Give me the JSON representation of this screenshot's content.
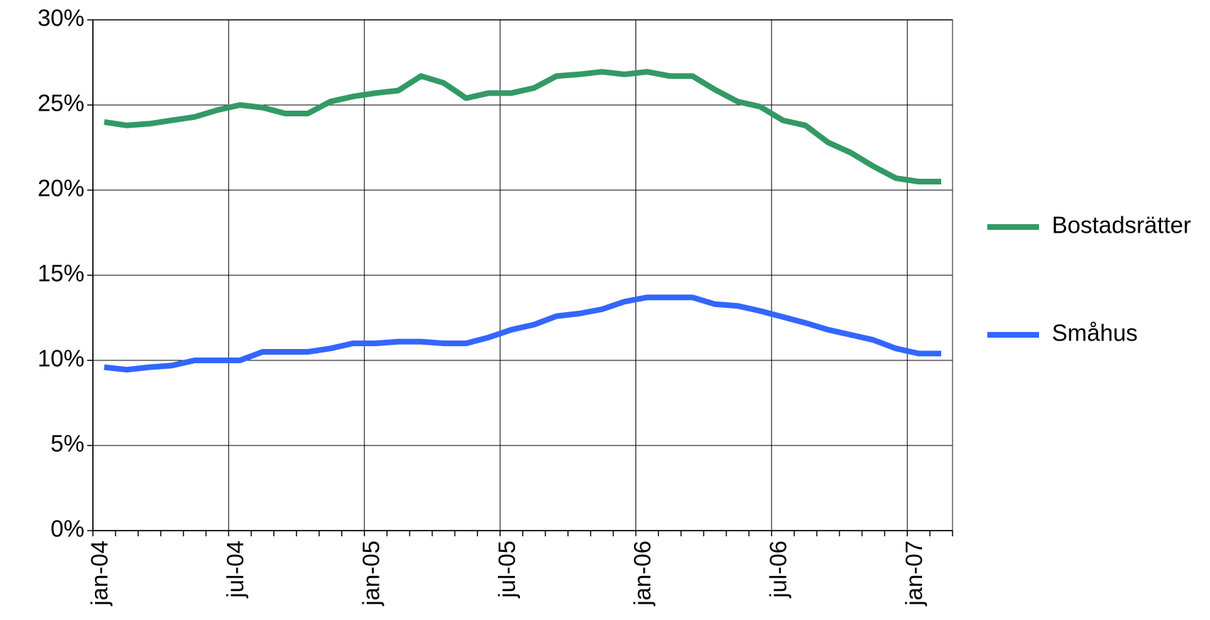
{
  "chart_data": {
    "type": "line",
    "categories": [
      "jan-04",
      null,
      null,
      null,
      null,
      null,
      "jul-04",
      null,
      null,
      null,
      null,
      null,
      "jan-05",
      null,
      null,
      null,
      null,
      null,
      "jul-05",
      null,
      null,
      null,
      null,
      null,
      "jan-06",
      null,
      null,
      null,
      null,
      null,
      "jul-06",
      null,
      null,
      null,
      null,
      null,
      "jan-07",
      null
    ],
    "series": [
      {
        "name": "Bostadsrätter",
        "color": "#339966",
        "values": [
          24.0,
          23.8,
          23.9,
          24.1,
          24.3,
          24.7,
          25.0,
          24.85,
          24.5,
          24.5,
          25.2,
          25.5,
          25.7,
          25.85,
          26.7,
          26.3,
          25.4,
          25.7,
          25.7,
          26.0,
          26.7,
          26.8,
          26.95,
          26.8,
          26.95,
          26.7,
          26.7,
          25.9,
          25.2,
          24.9,
          24.1,
          23.8,
          22.8,
          22.2,
          21.4,
          20.7,
          20.5,
          20.5
        ]
      },
      {
        "name": "Småhus",
        "color": "#3366ff",
        "values": [
          9.6,
          9.45,
          9.6,
          9.7,
          10.0,
          10.0,
          10.0,
          10.5,
          10.5,
          10.5,
          10.7,
          11.0,
          11.0,
          11.1,
          11.1,
          11.0,
          11.0,
          11.35,
          11.8,
          12.1,
          12.6,
          12.75,
          13.0,
          13.45,
          13.7,
          13.7,
          13.7,
          13.3,
          13.2,
          12.9,
          12.55,
          12.2,
          11.8,
          11.5,
          11.2,
          10.7,
          10.4,
          10.4
        ]
      }
    ],
    "ylim": [
      0,
      30
    ],
    "yticks": [
      {
        "value": 0,
        "label": "0%"
      },
      {
        "value": 5,
        "label": "5%"
      },
      {
        "value": 10,
        "label": "10%"
      },
      {
        "value": 15,
        "label": "15%"
      },
      {
        "value": 20,
        "label": "20%"
      },
      {
        "value": 25,
        "label": "25%"
      },
      {
        "value": 30,
        "label": "30%"
      }
    ],
    "grid": true,
    "legend": "right"
  }
}
